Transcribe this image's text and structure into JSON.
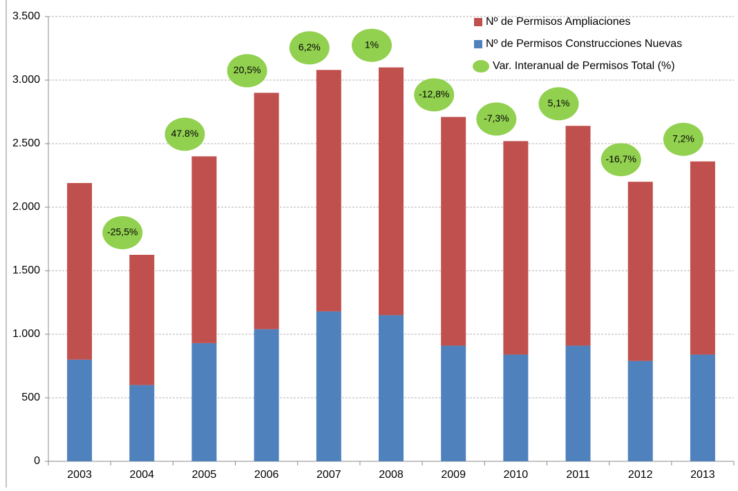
{
  "chart_data": {
    "type": "stacked_bar",
    "categories": [
      "2003",
      "2004",
      "2005",
      "2006",
      "2007",
      "2008",
      "2009",
      "2010",
      "2011",
      "2012",
      "2013"
    ],
    "series": [
      {
        "name": "Nº de Permisos Construcciones Nuevas",
        "color": "#4f81bd",
        "values": [
          800,
          600,
          930,
          1040,
          1180,
          1150,
          910,
          840,
          910,
          790,
          840
        ]
      },
      {
        "name": "Nº de Permisos Ampliaciones",
        "color": "#c0504d",
        "values": [
          1390,
          1025,
          1470,
          1860,
          1900,
          1950,
          1800,
          1680,
          1730,
          1410,
          1520
        ]
      }
    ],
    "annotation_series": {
      "name": "Var. Interanual de Permisos Total (%)",
      "color": "#92d050",
      "values": [
        null,
        -25.5,
        47.8,
        20.5,
        6.2,
        1,
        -12.8,
        -7.3,
        5.1,
        -16.7,
        7.2
      ],
      "value_labels": [
        null,
        "-25,5%",
        "47.8%",
        "20,5%",
        "6,2%",
        "1%",
        "-12,8%",
        "-7,3%",
        "5,1%",
        "-16,7%",
        "7,2%"
      ]
    },
    "ylim": [
      0,
      3500
    ],
    "yticks": [
      0,
      500,
      {
        "value": 1000,
        "label": "1.000"
      },
      {
        "value": 1500,
        "label": "1.500"
      },
      {
        "value": 2000,
        "label": "2.000"
      },
      {
        "value": 2500,
        "label": "2.500"
      },
      {
        "value": 3000,
        "label": "3.000"
      },
      {
        "value": 3500,
        "label": "3.500"
      }
    ],
    "grid": true
  }
}
